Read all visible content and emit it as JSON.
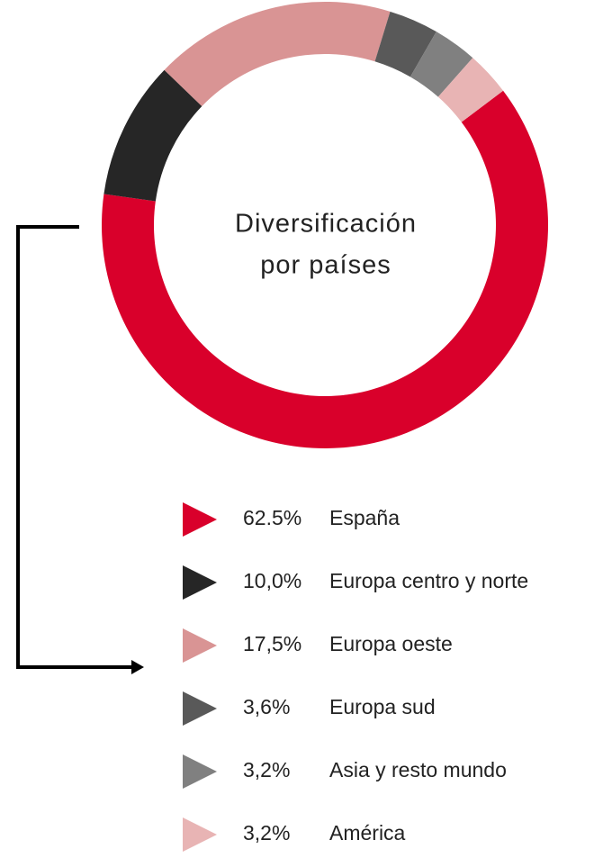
{
  "chart_data": {
    "type": "donut",
    "title": [
      "Diversificación",
      "por países"
    ],
    "categories": [
      "España",
      "Europa centro y norte",
      "Europa oeste",
      "Europa sud",
      "Asia y resto mundo",
      "América"
    ],
    "values": [
      62.5,
      10.0,
      17.5,
      3.6,
      3.2,
      3.2
    ],
    "value_labels": [
      "62.5%",
      "10,0%",
      "17,5%",
      "3,6%",
      "3,2%",
      "3,2%"
    ],
    "colors": [
      "#d9002b",
      "#262626",
      "#d99494",
      "#595959",
      "#808080",
      "#e8b4b4"
    ]
  }
}
